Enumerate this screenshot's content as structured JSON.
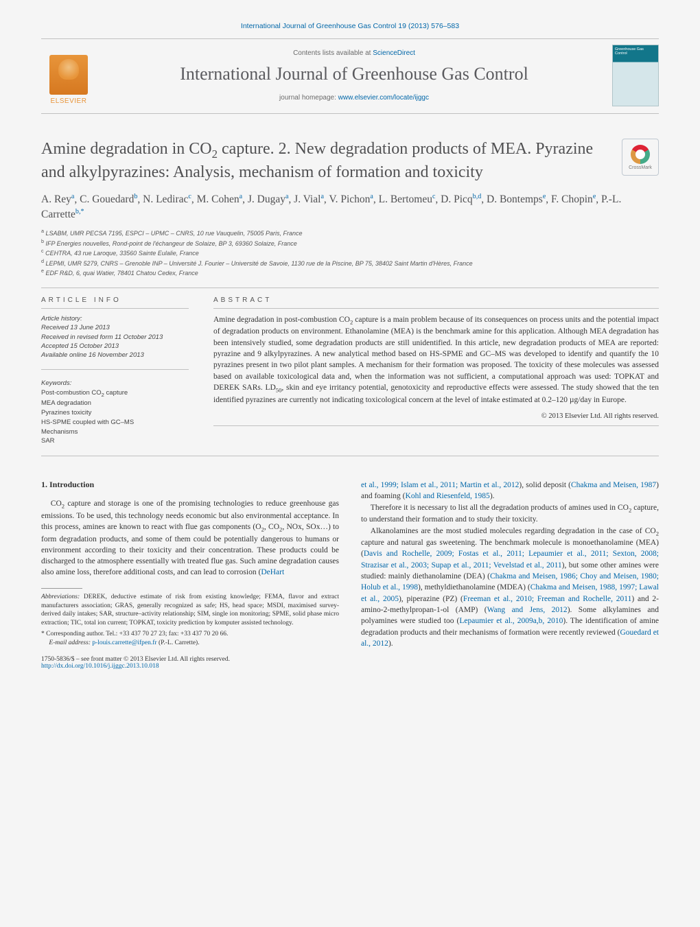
{
  "header": {
    "citation": "International Journal of Greenhouse Gas Control 19 (2013) 576–583",
    "contents_prefix": "Contents lists available at ",
    "sciencedirect": "ScienceDirect",
    "journal_name": "International Journal of Greenhouse Gas Control",
    "homepage_prefix": "journal homepage: ",
    "homepage_url": "www.elsevier.com/locate/ijggc",
    "publisher": "ELSEVIER",
    "cover_text": "Greenhouse Gas Control",
    "crossmark_label": "CrossMark"
  },
  "article": {
    "title_html": "Amine degradation in CO<sub>2</sub> capture. 2. New degradation products of MEA. Pyrazine and alkylpyrazines: Analysis, mechanism of formation and toxicity",
    "authors_html": "A. Rey<sup>a</sup>, C. Gouedard<sup>b</sup>, N. Ledirac<sup>c</sup>, M. Cohen<sup>a</sup>, J. Dugay<sup>a</sup>, J. Vial<sup>a</sup>, V. Pichon<sup>a</sup>, L. Bertomeu<sup>c</sup>, D. Picq<sup>b,d</sup>, D. Bontemps<sup>e</sup>, F. Chopin<sup>e</sup>, P.-L. Carrette<sup>b,*</sup>",
    "affiliations": [
      "a LSABM, UMR PECSA 7195, ESPCI – UPMC – CNRS, 10 rue Vauquelin, 75005 Paris, France",
      "b IFP Energies nouvelles, Rond-point de l'échangeur de Solaize, BP 3, 69360 Solaize, France",
      "c CEHTRA, 43 rue Laroque, 33560 Sainte Eulalie, France",
      "d LEPMI, UMR 5279, CNRS – Grenoble INP – Université J. Fourier – Université de Savoie, 1130 rue de la Piscine, BP 75, 38402 Saint Martin d'Hères, France",
      "e EDF R&D, 6, quai Watier, 78401 Chatou Cedex, France"
    ]
  },
  "info": {
    "section": "article info",
    "history_label": "Article history:",
    "history": [
      "Received 13 June 2013",
      "Received in revised form 11 October 2013",
      "Accepted 15 October 2013",
      "Available online 16 November 2013"
    ],
    "keywords_label": "Keywords:",
    "keywords_html": "Post-combustion CO<sub>2</sub> capture<br>MEA degradation<br>Pyrazines toxicity<br>HS-SPME coupled with GC–MS<br>Mechanisms<br>SAR"
  },
  "abstract": {
    "section": "abstract",
    "text_html": "Amine degradation in post-combustion CO<sub>2</sub> capture is a main problem because of its consequences on process units and the potential impact of degradation products on environment. Ethanolamine (MEA) is the benchmark amine for this application. Although MEA degradation has been intensively studied, some degradation products are still unidentified. In this article, new degradation products of MEA are reported: pyrazine and 9 alkylpyrazines. A new analytical method based on HS-SPME and GC–MS was developed to identify and quantify the 10 pyrazines present in two pilot plant samples. A mechanism for their formation was proposed. The toxicity of these molecules was assessed based on available toxicological data and, when the information was not sufficient, a computational approach was used: TOPKAT and DEREK SARs. LD<sub>50</sub>, skin and eye irritancy potential, genotoxicity and reproductive effects were assessed. The study showed that the ten identified pyrazines are currently not indicating toxicological concern at the level of intake estimated at 0.2–120 µg/day in Europe.",
    "copyright": "© 2013 Elsevier Ltd. All rights reserved."
  },
  "body": {
    "intro_head": "1.  Introduction",
    "left_para_html": "CO<sub>2</sub> capture and storage is one of the promising technologies to reduce greenhouse gas emissions. To be used, this technology needs economic but also environmental acceptance. In this process, amines are known to react with flue gas components (O<sub>2</sub>, CO<sub>2</sub>, NOx, SOx…) to form degradation products, and some of them could be potentially dangerous to humans or environment according to their toxicity and their concentration. These products could be discharged to the atmosphere essentially with treated flue gas. Such amine degradation causes also amine loss, therefore additional costs, and can lead to corrosion (<span class=\"cite\">DeHart</span>",
    "right_p1_html": "<span class=\"cite\">et al., 1999; Islam et al., 2011; Martin et al., 2012</span>), solid deposit (<span class=\"cite\">Chakma and Meisen, 1987</span>) and foaming (<span class=\"cite\">Kohl and Riesenfeld, 1985</span>).",
    "right_p2_html": "Therefore it is necessary to list all the degradation products of amines used in CO<sub>2</sub> capture, to understand their formation and to study their toxicity.",
    "right_p3_html": "Alkanolamines are the most studied molecules regarding degradation in the case of CO<sub>2</sub> capture and natural gas sweetening. The benchmark molecule is monoethanolamine (MEA) (<span class=\"cite\">Davis and Rochelle, 2009; Fostas et al., 2011; Lepaumier et al., 2011; Sexton, 2008; Strazisar et al., 2003; Supap et al., 2011; Vevelstad et al., 2011</span>), but some other amines were studied: mainly diethanolamine (DEA) (<span class=\"cite\">Chakma and Meisen, 1986; Choy and Meisen, 1980; Holub et al., 1998</span>), methyldiethanolamine (MDEA) (<span class=\"cite\">Chakma and Meisen, 1988, 1997; Lawal et al., 2005</span>), piperazine (PZ) (<span class=\"cite\">Freeman et al., 2010; Freeman and Rochelle, 2011</span>) and 2-amino-2-methylpropan-1-ol (AMP) (<span class=\"cite\">Wang and Jens, 2012</span>). Some alkylamines and polyamines were studied too (<span class=\"cite\">Lepaumier et al., 2009a,b, 2010</span>). The identification of amine degradation products and their mechanisms of formation were recently reviewed (<span class=\"cite\">Gouedard et al., 2012</span>)."
  },
  "footnotes": {
    "abbrev_label": "Abbreviations:",
    "abbrev_text": " DEREK, deductive estimate of risk from existing knowledge; FEMA, flavor and extract manufacturers association; GRAS, generally recognized as safe; HS, head space; MSDI, maximised survey-derived daily intakes; SAR, structure–activity relationship; SIM, single ion monitoring; SPME, solid phase micro extraction; TIC, total ion current; TOPKAT, toxicity prediction by komputer assisted technology.",
    "corresp_marker": "*",
    "corresp_text": " Corresponding author. Tel.: +33 437 70 27 23; fax: +33 437 70 20 66.",
    "email_label": "E-mail address:",
    "email": " p-louis.carrette@ifpen.fr",
    "email_after": " (P.-L. Carrette).",
    "issn": "1750-5836/$ – see front matter © 2013 Elsevier Ltd. All rights reserved.",
    "doi": "http://dx.doi.org/10.1016/j.ijggc.2013.10.018"
  },
  "colors": {
    "link": "#0066a8",
    "text": "#333333",
    "heading": "#505052",
    "elsevier": "#e8953a",
    "cover_top": "#12768a",
    "background": "#f5f5f5"
  },
  "fonts": {
    "sans": "Arial, Helvetica, sans-serif",
    "serif": "\"Times New Roman\", serif",
    "title_size_pt": 18,
    "body_size_pt": 9,
    "abstract_size_pt": 9,
    "small_size_pt": 7
  }
}
